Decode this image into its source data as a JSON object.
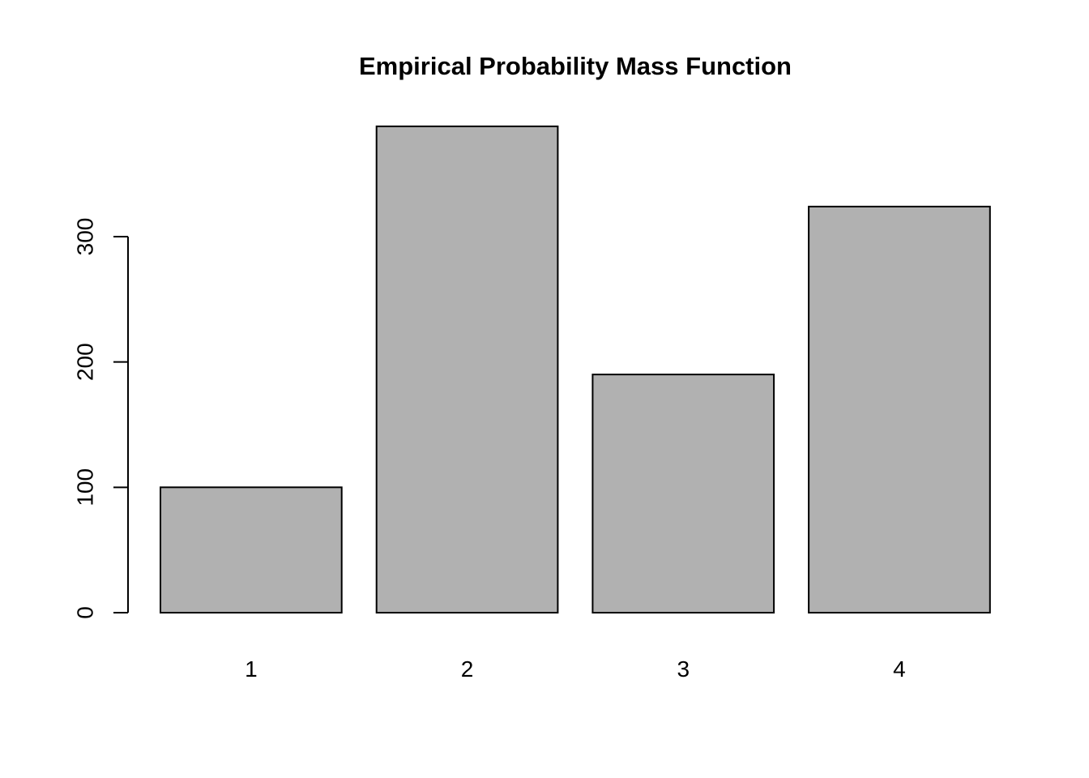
{
  "figure": {
    "title": "Empirical Probability Mass Function"
  },
  "chart_data": {
    "type": "bar",
    "title": "Empirical Probability Mass Function",
    "categories": [
      "1",
      "2",
      "3",
      "4"
    ],
    "values": [
      100,
      388,
      190,
      324
    ],
    "xlabel": "",
    "ylabel": "",
    "yticks": [
      0,
      100,
      200,
      300
    ],
    "ylim": [
      0,
      390
    ],
    "grid": false,
    "legend": null,
    "colors": {
      "bar_fill": "#b1b1b1",
      "bar_border": "#000000",
      "axis": "#000000",
      "text": "#000000",
      "background": "#ffffff"
    }
  }
}
